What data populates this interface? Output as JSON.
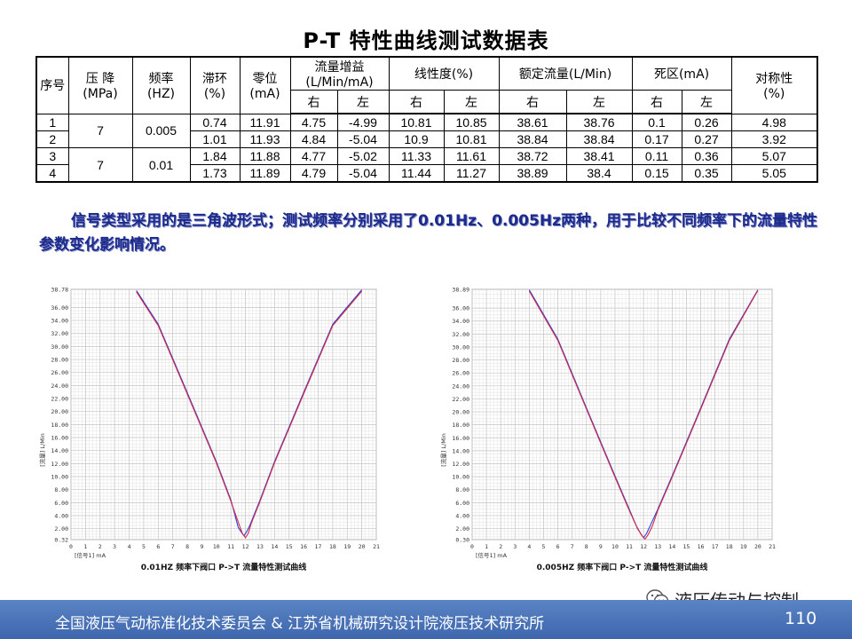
{
  "title": "P-T 特性曲线测试数据表",
  "table": {
    "headers": [
      "序号",
      "压 降\n(MPa)",
      "频率\n(HZ)",
      "滞环\n(%)",
      "零位\n(mA)",
      "流量增益\n(L/Min/mA)",
      "线性度(%)",
      "额定流量(L/Min)",
      "死区(mA)",
      "对称性\n(%)"
    ],
    "sub_headers": [
      "右",
      "左",
      "右",
      "左",
      "右",
      "左",
      "右",
      "左"
    ],
    "groups": [
      {
        "pressure": "7",
        "frequency": "0.005",
        "rows": [
          [
            "1",
            "0.74",
            "11.91",
            "4.75",
            "-4.99",
            "10.81",
            "10.85",
            "38.61",
            "38.76",
            "0.1",
            "0.26",
            "4.98"
          ],
          [
            "2",
            "1.01",
            "11.93",
            "4.84",
            "-5.04",
            "10.9",
            "10.81",
            "38.84",
            "38.84",
            "0.17",
            "0.27",
            "3.92"
          ]
        ]
      },
      {
        "pressure": "7",
        "frequency": "0.01",
        "rows": [
          [
            "3",
            "1.84",
            "11.88",
            "4.77",
            "-5.02",
            "11.33",
            "11.61",
            "38.72",
            "38.41",
            "0.11",
            "0.36",
            "5.07"
          ],
          [
            "4",
            "1.73",
            "11.89",
            "4.79",
            "-5.04",
            "11.44",
            "11.27",
            "38.89",
            "38.4",
            "0.15",
            "0.35",
            "5.05"
          ]
        ]
      }
    ]
  },
  "description": "信号类型采用的是三角波形式；测试频率分别采用了0.01Hz、0.005Hz两种，用于比较不同频率下的流量特性参数变化影响情况。",
  "chart_data": [
    {
      "type": "line",
      "caption": "0.01HZ 频率下阀口 P->T 流量特性测试曲线",
      "xlabel": "[信号1] mA",
      "ylabel": "[流量] L/Min",
      "xlim": [
        0,
        21
      ],
      "ylim": [
        0.32,
        38.78
      ],
      "x_ticks": [
        "0",
        "1",
        "2",
        "3",
        "4",
        "5",
        "6",
        "7",
        "8",
        "9",
        "10",
        "11",
        "12",
        "13",
        "14",
        "15",
        "16",
        "17",
        "18",
        "19",
        "20",
        "21"
      ],
      "y_ticks": [
        "0.32",
        "2.00",
        "4.00",
        "6.00",
        "8.00",
        "10.00",
        "12.00",
        "14.00",
        "16.00",
        "18.00",
        "20.00",
        "22.00",
        "24.00",
        "26.00",
        "28.00",
        "30.00",
        "32.00",
        "34.00",
        "36.00",
        "38.78"
      ],
      "grid": true,
      "series": [
        {
          "color": "#2b3fd4",
          "x": [
            4.5,
            6,
            8,
            10,
            11,
            11.5,
            11.7,
            11.9,
            12.1,
            12.3,
            13,
            14,
            16,
            18,
            20
          ],
          "y": [
            38.6,
            33.4,
            22.9,
            12.3,
            6.4,
            2.2,
            1.5,
            0.9,
            1.6,
            2.5,
            6.4,
            12.3,
            22.9,
            33.4,
            38.7
          ]
        },
        {
          "color": "#d42b4a",
          "x": [
            4.5,
            6,
            8,
            10,
            11,
            11.6,
            11.8,
            12.0,
            12.2,
            12.4,
            13,
            14,
            16,
            18,
            20
          ],
          "y": [
            38.4,
            33.2,
            22.7,
            12.1,
            6.2,
            2.4,
            1.2,
            0.6,
            1.3,
            2.8,
            6.2,
            12.1,
            22.7,
            33.2,
            38.5
          ]
        }
      ]
    },
    {
      "type": "line",
      "caption": "0.005HZ 频率下阀口 P->T 流量特性测试曲线",
      "xlabel": "[信号1] mA",
      "ylabel": "[流量] L/Min",
      "xlim": [
        0,
        21
      ],
      "ylim": [
        0.3,
        38.89
      ],
      "x_ticks": [
        "0",
        "1",
        "2",
        "3",
        "4",
        "5",
        "6",
        "7",
        "8",
        "9",
        "10",
        "11",
        "12",
        "13",
        "14",
        "15",
        "16",
        "17",
        "18",
        "19",
        "20",
        "21"
      ],
      "y_ticks": [
        "0.30",
        "2.00",
        "4.00",
        "6.00",
        "8.00",
        "10.00",
        "12.00",
        "14.00",
        "16.00",
        "18.00",
        "20.00",
        "22.00",
        "24.00",
        "26.00",
        "28.00",
        "30.00",
        "32.00",
        "34.00",
        "36.00",
        "38.89"
      ],
      "grid": true,
      "series": [
        {
          "color": "#2b3fd4",
          "x": [
            4,
            6,
            8,
            10,
            11,
            11.5,
            11.8,
            12.0,
            12.2,
            12.5,
            13,
            14,
            16,
            18,
            20
          ],
          "y": [
            38.8,
            31.2,
            20.6,
            10.1,
            5.0,
            2.4,
            1.2,
            0.6,
            1.2,
            2.6,
            5.0,
            10.1,
            20.6,
            31.2,
            38.8
          ]
        },
        {
          "color": "#d42b4a",
          "x": [
            4,
            6,
            8,
            10,
            11,
            11.6,
            11.9,
            12.1,
            12.3,
            12.6,
            13,
            14,
            16,
            18,
            20
          ],
          "y": [
            38.6,
            31.0,
            20.4,
            9.9,
            4.8,
            1.9,
            0.9,
            0.4,
            1.0,
            2.3,
            4.8,
            9.9,
            20.4,
            31.0,
            38.7
          ]
        }
      ]
    }
  ],
  "footer": {
    "text": "全国液压气动标准化技术委员会 & 江苏省机械研究设计院液压技术研究所",
    "page": "110",
    "watermark": "液压传动与控制",
    "watermark_icon": "wechat-icon"
  }
}
